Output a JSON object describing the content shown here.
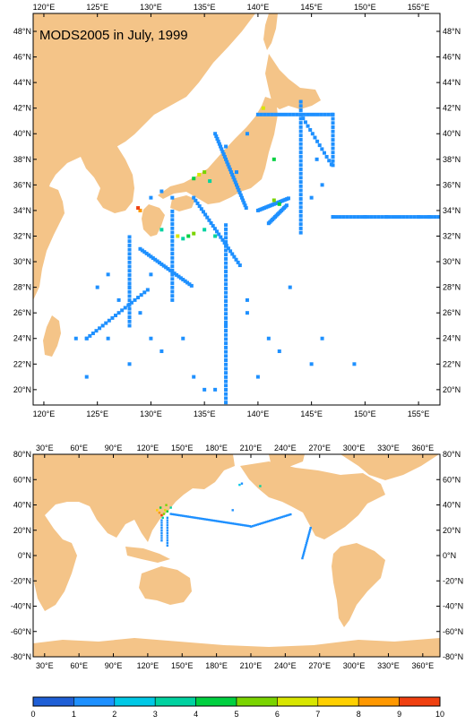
{
  "map_top": {
    "title": "MODS2005 in July, 1999",
    "lon_labels": [
      "120°E",
      "125°E",
      "130°E",
      "135°E",
      "140°E",
      "145°E",
      "150°E",
      "155°E"
    ],
    "lat_labels": [
      "20°N",
      "22°N",
      "24°N",
      "26°N",
      "28°N",
      "30°N",
      "32°N",
      "34°N",
      "36°N",
      "38°N",
      "40°N",
      "42°N",
      "44°N",
      "46°N",
      "48°N"
    ],
    "lon_range": [
      119,
      157
    ],
    "lat_range": [
      18.8,
      49.4
    ]
  },
  "map_bottom": {
    "lon_labels": [
      "30°E",
      "60°E",
      "90°E",
      "120°E",
      "150°E",
      "180°E",
      "210°E",
      "240°E",
      "270°E",
      "300°E",
      "330°E",
      "360°E"
    ],
    "lat_labels": [
      "80°N",
      "60°N",
      "40°N",
      "20°N",
      "0°N",
      "-20°N",
      "-40°N",
      "-60°N",
      "-80°N"
    ],
    "lon_range": [
      20,
      375
    ],
    "lat_range": [
      -80,
      80
    ]
  },
  "colorbar": {
    "labels": [
      "0",
      "1",
      "2",
      "3",
      "4",
      "5",
      "6",
      "7",
      "8",
      "9",
      "10"
    ],
    "colors": [
      "#1f5fd6",
      "#1e90ff",
      "#00c8e6",
      "#00d2a0",
      "#00d040",
      "#7ad400",
      "#d8e600",
      "#ffd000",
      "#ff9800",
      "#f04010"
    ]
  },
  "colors": {
    "land": "#f4c488",
    "ocean": "#ffffff",
    "frame": "#000000"
  }
}
